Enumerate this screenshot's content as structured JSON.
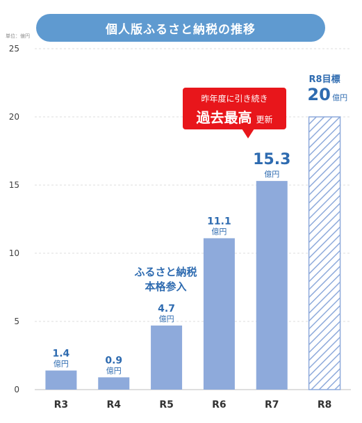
{
  "title": "個人版ふるさと納税の推移",
  "unit_label": "単位：億円",
  "callout": {
    "line1": "昨年度に引き続き",
    "big": "過去最高",
    "small": "更新"
  },
  "note": {
    "line1": "ふるさと納税",
    "line2": "本格参入"
  },
  "colors": {
    "bar": "#8eaadb",
    "label": "#2e6bb0",
    "callout": "#e8161b",
    "title_bg": "#5f9ad0"
  },
  "chart_data": {
    "type": "bar",
    "categories": [
      "R3",
      "R4",
      "R5",
      "R6",
      "R7",
      "R8"
    ],
    "values": [
      1.4,
      0.9,
      4.7,
      11.1,
      15.3,
      20
    ],
    "value_labels": [
      "1.4",
      "0.9",
      "4.7",
      "11.1",
      "15.3",
      "20"
    ],
    "value_unit": "億円",
    "target_header": "R8目標",
    "target_index": 5,
    "ylim": [
      0,
      25
    ],
    "yticks": [
      0,
      5,
      10,
      15,
      20,
      25
    ],
    "ytick_labels": [
      "0",
      "5",
      "10",
      "15",
      "20",
      "25"
    ],
    "grid": true
  }
}
